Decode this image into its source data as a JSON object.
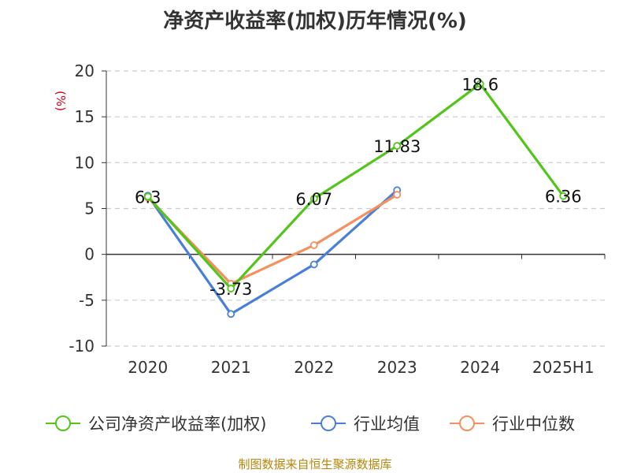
{
  "chart_data": {
    "type": "line",
    "title": "净资产收益率(加权)历年情况(%)",
    "ylabel": "(%)",
    "xlabel": "",
    "categories": [
      "2020",
      "2021",
      "2022",
      "2023",
      "2024",
      "2025H1"
    ],
    "ylim": [
      -10,
      20
    ],
    "yticks": [
      -10,
      -5,
      0,
      5,
      10,
      15,
      20
    ],
    "grid": true,
    "legend_position": "bottom",
    "series": [
      {
        "name": "公司净资产收益率(加权)",
        "color": "#52c41a",
        "values": [
          6.3,
          -3.73,
          6.07,
          11.83,
          18.6,
          6.36
        ],
        "labels": [
          "6.3",
          "-3.73",
          "6.07",
          "11.83",
          "18.6",
          "6.36"
        ]
      },
      {
        "name": "行业均值",
        "color": "#4a7fd8",
        "values": [
          6.4,
          -6.5,
          -1.1,
          7.0,
          null,
          null
        ]
      },
      {
        "name": "行业中位数",
        "color": "#f4905e",
        "values": [
          6.2,
          -3.2,
          1.0,
          6.5,
          null,
          null
        ]
      }
    ]
  },
  "footer": {
    "source": "制图数据来自恒生聚源数据库"
  }
}
